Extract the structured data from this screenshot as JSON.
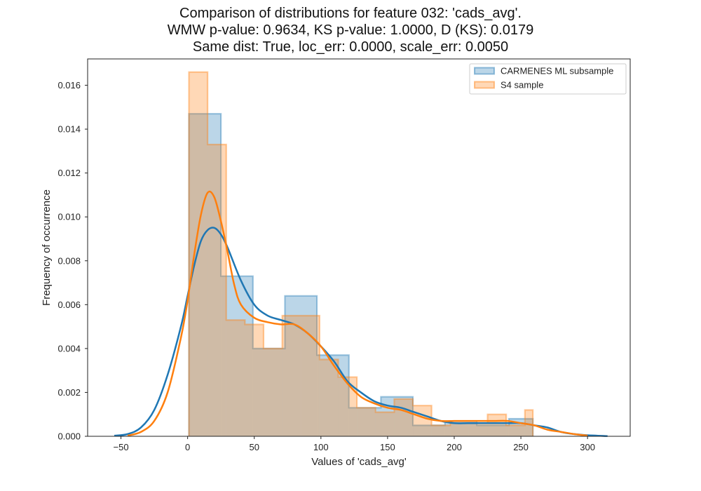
{
  "chart_data": {
    "type": "histogram",
    "title": [
      "Comparison of distributions for feature 032: 'cads_avg'.",
      "WMW p-value: 0.9634, KS p-value: 1.0000, D (KS): 0.0179",
      "Same dist: True, loc_err: 0.0000, scale_err: 0.0050"
    ],
    "xlabel": "Values of 'cads_avg'",
    "ylabel": "Frequency of occurrence",
    "xlim": [
      -75,
      332
    ],
    "ylim": [
      0,
      0.0172
    ],
    "xticks": [
      -50,
      0,
      50,
      100,
      150,
      200,
      250,
      300
    ],
    "xtick_labels": [
      "−50",
      "0",
      "50",
      "100",
      "150",
      "200",
      "250",
      "300"
    ],
    "yticks": [
      0,
      0.002,
      0.004,
      0.006,
      0.008,
      0.01,
      0.012,
      0.014,
      0.016
    ],
    "ytick_labels": [
      "0.000",
      "0.002",
      "0.004",
      "0.006",
      "0.008",
      "0.010",
      "0.012",
      "0.014",
      "0.016"
    ],
    "grid": false,
    "legend_position": "top-right",
    "series": [
      {
        "name": "CARMENES ML subsample",
        "color": "#1f77b4",
        "bin_edges": [
          1,
          25,
          49,
          73,
          97,
          121,
          145,
          169,
          193,
          217,
          241,
          259
        ],
        "hist": [
          0.0147,
          0.0073,
          0.004,
          0.0064,
          0.0037,
          0.0013,
          0.0018,
          0.0005,
          0.0007,
          0.0005,
          0.0008
        ],
        "kde": {
          "x": [
            -55,
            -45,
            -35,
            -25,
            -15,
            -5,
            0,
            5,
            10,
            15,
            20,
            25,
            30,
            40,
            50,
            60,
            70,
            80,
            90,
            100,
            110,
            120,
            130,
            140,
            150,
            160,
            170,
            180,
            190,
            200,
            210,
            220,
            230,
            240,
            250,
            260,
            270,
            280,
            290,
            300,
            315
          ],
          "y": [
            3e-05,
            0.0001,
            0.0004,
            0.0012,
            0.0028,
            0.005,
            0.0064,
            0.0078,
            0.0089,
            0.0094,
            0.0095,
            0.0092,
            0.0086,
            0.0071,
            0.006,
            0.0055,
            0.0053,
            0.0051,
            0.0047,
            0.0041,
            0.0034,
            0.0025,
            0.002,
            0.0016,
            0.0014,
            0.0013,
            0.0011,
            0.0009,
            0.0007,
            0.0006,
            0.0006,
            0.0006,
            0.0006,
            0.0006,
            0.0006,
            0.0005,
            0.0004,
            0.0002,
            0.0001,
            5e-05,
            1e-05
          ]
        }
      },
      {
        "name": "S4 sample",
        "color": "#ff7f0e",
        "bin_edges": [
          1,
          15,
          29,
          43,
          57,
          71,
          85,
          99,
          113,
          127,
          141,
          155,
          169,
          183,
          197,
          211,
          225,
          239,
          253,
          259
        ],
        "hist": [
          0.0166,
          0.0133,
          0.0053,
          0.0051,
          0.004,
          0.0055,
          0.0055,
          0.0035,
          0.0027,
          0.0013,
          0.0011,
          0.0017,
          0.0014,
          0.0005,
          0.0006,
          0.0006,
          0.001,
          0.0005,
          0.0012
        ],
        "kde": {
          "x": [
            -45,
            -35,
            -25,
            -15,
            -5,
            0,
            5,
            10,
            15,
            20,
            25,
            30,
            35,
            40,
            50,
            60,
            70,
            80,
            90,
            100,
            110,
            120,
            130,
            140,
            150,
            160,
            170,
            180,
            190,
            200,
            210,
            220,
            230,
            240,
            250,
            260,
            270,
            280,
            290,
            300
          ],
          "y": [
            3e-05,
            0.0002,
            0.0007,
            0.002,
            0.0045,
            0.0062,
            0.0083,
            0.0101,
            0.0111,
            0.0109,
            0.0098,
            0.0084,
            0.0069,
            0.006,
            0.0054,
            0.0052,
            0.0051,
            0.0051,
            0.0047,
            0.0041,
            0.0032,
            0.0024,
            0.0018,
            0.0015,
            0.0013,
            0.0012,
            0.001,
            0.0008,
            0.0007,
            0.0007,
            0.0007,
            0.0007,
            0.0007,
            0.0007,
            0.0006,
            0.0005,
            0.0003,
            0.0002,
            0.0001,
            3e-05
          ]
        }
      }
    ]
  }
}
